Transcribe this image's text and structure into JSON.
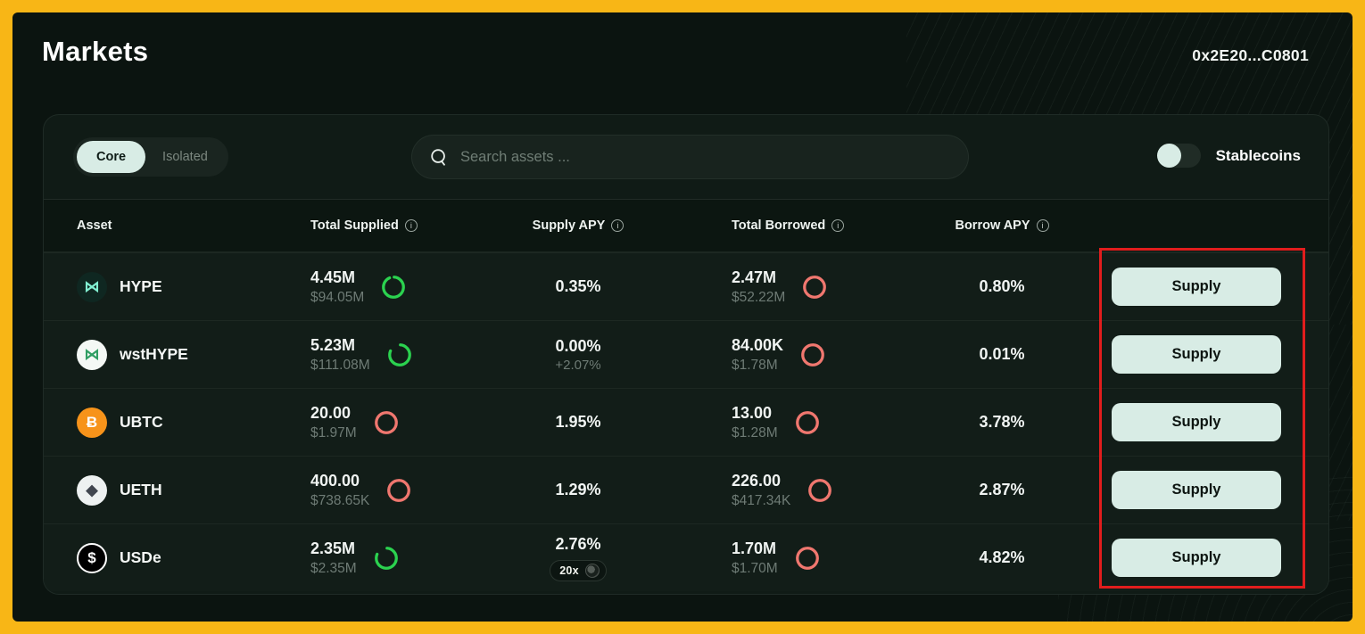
{
  "header": {
    "title": "Markets",
    "wallet_address": "0x2E20...C0801"
  },
  "filter_bar": {
    "tabs": [
      {
        "label": "Core",
        "active": true
      },
      {
        "label": "Isolated",
        "active": false
      }
    ],
    "search_placeholder": "Search assets ...",
    "stablecoins_label": "Stablecoins",
    "stablecoins_enabled": false
  },
  "table": {
    "info_glyph": "i",
    "headers": [
      {
        "label": "Asset"
      },
      {
        "label": "Total Supplied"
      },
      {
        "label": "Supply APY"
      },
      {
        "label": "Total Borrowed"
      },
      {
        "label": "Borrow APY"
      }
    ],
    "rows": [
      {
        "asset": "HYPE",
        "icon": "hype-icon",
        "icon_glyph": "⋈",
        "icon_bg": "#0f2721",
        "icon_fg": "#82f0d2",
        "supplied": "4.45M",
        "supplied_usd": "$94.05M",
        "supplied_ring": {
          "color": "#2bd24f",
          "pct": 0.92
        },
        "supply_apy": "0.35%",
        "supply_apy_sub": "",
        "apy_badge": "",
        "borrowed": "2.47M",
        "borrowed_usd": "$52.22M",
        "borrowed_ring": {
          "color": "#f0776f",
          "pct": 1
        },
        "borrow_apy": "0.80%",
        "action": "Supply"
      },
      {
        "asset": "wstHYPE",
        "icon": "wsthype-icon",
        "icon_glyph": "⋈",
        "icon_bg": "#f4f8f5",
        "icon_fg": "#2f9e63",
        "supplied": "5.23M",
        "supplied_usd": "$111.08M",
        "supplied_ring": {
          "color": "#2bd24f",
          "pct": 0.8
        },
        "supply_apy": "0.00%",
        "supply_apy_sub": "+2.07%",
        "apy_badge": "",
        "borrowed": "84.00K",
        "borrowed_usd": "$1.78M",
        "borrowed_ring": {
          "color": "#f0776f",
          "pct": 1
        },
        "borrow_apy": "0.01%",
        "action": "Supply"
      },
      {
        "asset": "UBTC",
        "icon": "btc-icon",
        "icon_glyph": "Ƀ",
        "icon_bg": "#f7931a",
        "icon_fg": "#ffffff",
        "supplied": "20.00",
        "supplied_usd": "$1.97M",
        "supplied_ring": {
          "color": "#f0776f",
          "pct": 1
        },
        "supply_apy": "1.95%",
        "supply_apy_sub": "",
        "apy_badge": "",
        "borrowed": "13.00",
        "borrowed_usd": "$1.28M",
        "borrowed_ring": {
          "color": "#f0776f",
          "pct": 1
        },
        "borrow_apy": "3.78%",
        "action": "Supply"
      },
      {
        "asset": "UETH",
        "icon": "eth-icon",
        "icon_glyph": "◆",
        "icon_bg": "#edf1f1",
        "icon_fg": "#40464f",
        "supplied": "400.00",
        "supplied_usd": "$738.65K",
        "supplied_ring": {
          "color": "#f0776f",
          "pct": 1
        },
        "supply_apy": "1.29%",
        "supply_apy_sub": "",
        "apy_badge": "",
        "borrowed": "226.00",
        "borrowed_usd": "$417.34K",
        "borrowed_ring": {
          "color": "#f0776f",
          "pct": 1
        },
        "borrow_apy": "2.87%",
        "action": "Supply"
      },
      {
        "asset": "USDe",
        "icon": "usde-icon",
        "icon_glyph": "$",
        "icon_bg": "#000000",
        "icon_fg": "#ffffff",
        "icon_border": "2px solid #ffffff",
        "supplied": "2.35M",
        "supplied_usd": "$2.35M",
        "supplied_ring": {
          "color": "#2bd24f",
          "pct": 0.8
        },
        "supply_apy": "2.76%",
        "supply_apy_sub": "",
        "apy_badge": "20x",
        "borrowed": "1.70M",
        "borrowed_usd": "$1.70M",
        "borrowed_ring": {
          "color": "#f0776f",
          "pct": 1
        },
        "borrow_apy": "4.82%",
        "action": "Supply"
      }
    ]
  },
  "annotation": {
    "color": "#e11d1d"
  },
  "colors": {
    "frame_yellow": "#f8b616",
    "background": "#0b1410",
    "card": "#101b16",
    "accent_mint": "#d8ece5",
    "ring_green": "#2bd24f",
    "ring_red": "#f0776f"
  }
}
